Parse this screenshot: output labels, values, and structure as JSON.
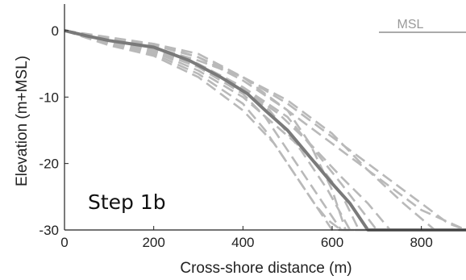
{
  "chart_data": {
    "type": "line",
    "title": "",
    "xlabel": "Cross-shore distance (m)",
    "ylabel": "Elevation (m+MSL)",
    "xlim": [
      0,
      900
    ],
    "ylim": [
      -30,
      4
    ],
    "xticks": [
      0,
      200,
      400,
      600,
      800
    ],
    "yticks": [
      0,
      -10,
      -20,
      -30
    ],
    "grid": false,
    "annotation": "Step 1b",
    "legend": {
      "placement": "top-right",
      "entries": [
        "MSL"
      ]
    },
    "colors": {
      "main": "#7a7a7a",
      "ensemble": "#b9b9b9",
      "axis": "#222222"
    },
    "series": [
      {
        "style": "solid",
        "x": [
          0,
          50,
          100,
          200,
          280,
          350,
          410,
          450,
          500,
          550,
          600,
          640,
          680,
          900
        ],
        "y": [
          0,
          -0.8,
          -1.5,
          -2.5,
          -4.5,
          -7,
          -9.5,
          -12,
          -15,
          -19,
          -23,
          -26,
          -30,
          -30
        ]
      },
      {
        "style": "dashed",
        "x": [
          0,
          100,
          200,
          300,
          400,
          450,
          520,
          580,
          620,
          900
        ],
        "y": [
          0,
          -1.6,
          -3,
          -5.5,
          -9.5,
          -13,
          -20,
          -26,
          -30,
          -30
        ]
      },
      {
        "style": "dashed",
        "x": [
          0,
          100,
          200,
          300,
          400,
          460,
          530,
          590,
          640,
          900
        ],
        "y": [
          0,
          -1.5,
          -2.8,
          -5.2,
          -9,
          -12,
          -18,
          -24,
          -30,
          -30
        ]
      },
      {
        "style": "dashed",
        "x": [
          0,
          100,
          200,
          300,
          400,
          450,
          500,
          540,
          570,
          600,
          900
        ],
        "y": [
          0,
          -2,
          -3.5,
          -6.5,
          -11,
          -15,
          -20,
          -24,
          -27,
          -30,
          -30
        ]
      },
      {
        "style": "dashed",
        "x": [
          0,
          100,
          200,
          300,
          400,
          500,
          550,
          600,
          630,
          900
        ],
        "y": [
          0,
          -1.2,
          -2,
          -3.5,
          -7,
          -12,
          -17,
          -24,
          -30,
          -30
        ]
      },
      {
        "style": "dashed",
        "x": [
          0,
          100,
          200,
          300,
          400,
          480,
          550,
          620,
          680,
          730,
          900
        ],
        "y": [
          0,
          -1.3,
          -2.5,
          -5,
          -8.8,
          -12.5,
          -17,
          -22,
          -26,
          -30,
          -30
        ]
      },
      {
        "style": "dashed",
        "x": [
          0,
          100,
          200,
          300,
          400,
          500,
          580,
          660,
          740,
          800,
          900
        ],
        "y": [
          0,
          -1,
          -2,
          -4,
          -7.5,
          -12,
          -16,
          -20,
          -24,
          -27,
          -30
        ]
      },
      {
        "style": "dashed",
        "x": [
          0,
          100,
          200,
          300,
          400,
          500,
          600,
          700,
          780,
          860,
          900
        ],
        "y": [
          0,
          -1.5,
          -2.5,
          -4.5,
          -7,
          -11,
          -16,
          -21,
          -25,
          -29,
          -30
        ]
      },
      {
        "style": "dashed",
        "x": [
          0,
          100,
          200,
          300,
          400,
          500,
          600,
          680,
          760,
          830,
          900
        ],
        "y": [
          0,
          -1.1,
          -2.2,
          -4,
          -7,
          -10.5,
          -15.5,
          -21,
          -26,
          -30,
          -30
        ]
      },
      {
        "style": "dashed",
        "x": [
          0,
          100,
          200,
          300,
          400,
          460,
          520,
          580,
          620,
          660,
          900
        ],
        "y": [
          0,
          -1.8,
          -3.2,
          -6,
          -10,
          -13.5,
          -17,
          -21,
          -24.5,
          -30,
          -30
        ]
      },
      {
        "style": "dashed",
        "x": [
          0,
          100,
          200,
          300,
          400,
          500,
          560,
          620,
          700,
          900
        ],
        "y": [
          0,
          -1.4,
          -2.7,
          -5,
          -8.5,
          -13,
          -18,
          -23,
          -30,
          -30
        ]
      },
      {
        "style": "dashed",
        "x": [
          0,
          100,
          200,
          300,
          400,
          470,
          520,
          560,
          590,
          620,
          900
        ],
        "y": [
          0,
          -2.2,
          -3.8,
          -7,
          -12,
          -17,
          -22,
          -26,
          -28.5,
          -30,
          -30
        ]
      }
    ]
  }
}
